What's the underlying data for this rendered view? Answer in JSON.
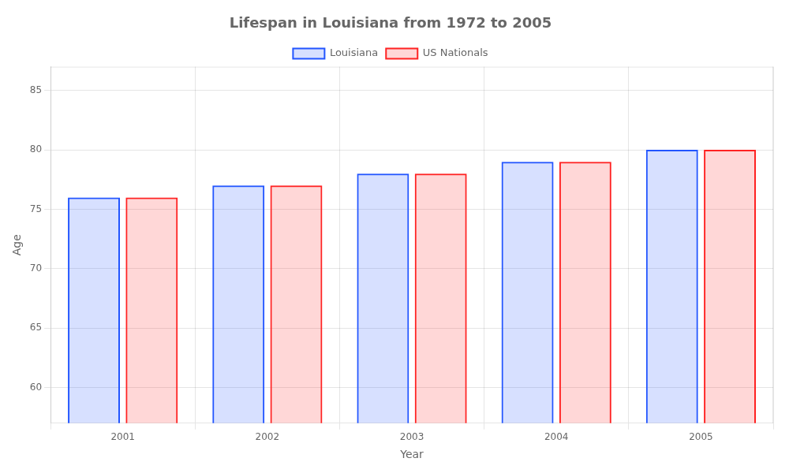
{
  "chart_data": {
    "type": "bar",
    "title": "Lifespan in Louisiana from 1972 to 2005",
    "xlabel": "Year",
    "ylabel": "Age",
    "categories": [
      "2001",
      "2002",
      "2003",
      "2004",
      "2005"
    ],
    "series": [
      {
        "name": "Louisiana",
        "color": "#2255ff",
        "values": [
          76,
          77,
          78,
          79,
          80
        ]
      },
      {
        "name": "US Nationals",
        "color": "#ff2222",
        "values": [
          76,
          77,
          78,
          79,
          80
        ]
      }
    ],
    "ylim": [
      57,
      87
    ],
    "yticks": [
      60,
      65,
      70,
      75,
      80,
      85
    ],
    "grid": true,
    "legend": "top"
  }
}
